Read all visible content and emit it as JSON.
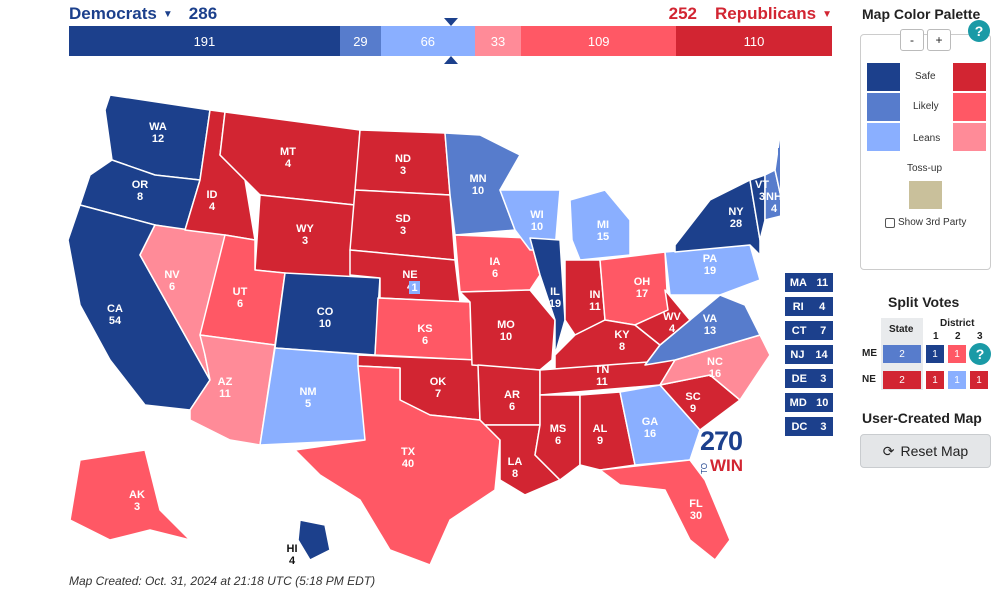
{
  "header": {
    "dem_label": "Democrats",
    "dem_total": "286",
    "rep_label": "Republicans",
    "rep_total": "252"
  },
  "bar": [
    {
      "value": "191",
      "color": "#1c408c",
      "flex": 191
    },
    {
      "value": "29",
      "color": "#577ccc",
      "flex": 29
    },
    {
      "value": "66",
      "color": "#8aafff",
      "flex": 66
    },
    {
      "value": "33",
      "color": "#ff8b98",
      "flex": 33
    },
    {
      "value": "109",
      "color": "#ff5865",
      "flex": 109
    },
    {
      "value": "110",
      "color": "#d22532",
      "flex": 110
    }
  ],
  "colors": {
    "safe_d": "#1c408c",
    "likely_d": "#577ccc",
    "lean_d": "#8aafff",
    "lean_r": "#ff8b98",
    "likely_r": "#ff5865",
    "safe_r": "#d22532",
    "tossup": "#c9c09b"
  },
  "states": {
    "WA": {
      "ev": "12",
      "rating": "safe_d"
    },
    "OR": {
      "ev": "8",
      "rating": "safe_d"
    },
    "CA": {
      "ev": "54",
      "rating": "safe_d"
    },
    "NV": {
      "ev": "6",
      "rating": "lean_r"
    },
    "ID": {
      "ev": "4",
      "rating": "safe_r"
    },
    "MT": {
      "ev": "4",
      "rating": "safe_r"
    },
    "WY": {
      "ev": "3",
      "rating": "safe_r"
    },
    "UT": {
      "ev": "6",
      "rating": "likely_r"
    },
    "AZ": {
      "ev": "11",
      "rating": "lean_r"
    },
    "CO": {
      "ev": "10",
      "rating": "safe_d"
    },
    "NM": {
      "ev": "5",
      "rating": "lean_d"
    },
    "ND": {
      "ev": "3",
      "rating": "safe_r"
    },
    "SD": {
      "ev": "3",
      "rating": "safe_r"
    },
    "NE": {
      "ev": "4",
      "rating": "safe_r"
    },
    "KS": {
      "ev": "6",
      "rating": "likely_r"
    },
    "OK": {
      "ev": "7",
      "rating": "safe_r"
    },
    "TX": {
      "ev": "40",
      "rating": "likely_r"
    },
    "MN": {
      "ev": "10",
      "rating": "likely_d"
    },
    "IA": {
      "ev": "6",
      "rating": "likely_r"
    },
    "MO": {
      "ev": "10",
      "rating": "safe_r"
    },
    "AR": {
      "ev": "6",
      "rating": "safe_r"
    },
    "LA": {
      "ev": "8",
      "rating": "safe_r"
    },
    "WI": {
      "ev": "10",
      "rating": "lean_d"
    },
    "IL": {
      "ev": "19",
      "rating": "safe_d"
    },
    "MI": {
      "ev": "15",
      "rating": "lean_d"
    },
    "IN": {
      "ev": "11",
      "rating": "safe_r"
    },
    "OH": {
      "ev": "17",
      "rating": "likely_r"
    },
    "KY": {
      "ev": "8",
      "rating": "safe_r"
    },
    "TN": {
      "ev": "11",
      "rating": "safe_r"
    },
    "MS": {
      "ev": "6",
      "rating": "safe_r"
    },
    "AL": {
      "ev": "9",
      "rating": "safe_r"
    },
    "GA": {
      "ev": "16",
      "rating": "lean_d"
    },
    "FL": {
      "ev": "30",
      "rating": "likely_r"
    },
    "SC": {
      "ev": "9",
      "rating": "safe_r"
    },
    "NC": {
      "ev": "16",
      "rating": "lean_r"
    },
    "VA": {
      "ev": "13",
      "rating": "likely_d"
    },
    "WV": {
      "ev": "4",
      "rating": "safe_r"
    },
    "PA": {
      "ev": "19",
      "rating": "lean_d"
    },
    "NY": {
      "ev": "28",
      "rating": "safe_d"
    },
    "VT": {
      "ev": "3",
      "rating": "safe_d"
    },
    "NH": {
      "ev": "4",
      "rating": "likely_d"
    },
    "ME": {
      "ev": "",
      "rating": "likely_d"
    },
    "AK": {
      "ev": "3",
      "rating": "likely_r"
    },
    "HI": {
      "ev": "4",
      "rating": "safe_d"
    }
  },
  "maine_districts": [
    "2",
    "1",
    "1"
  ],
  "nebraska_district": "1",
  "small_states": [
    {
      "abbr": "MA",
      "ev": "11"
    },
    {
      "abbr": "RI",
      "ev": "4"
    },
    {
      "abbr": "CT",
      "ev": "7"
    },
    {
      "abbr": "NJ",
      "ev": "14"
    },
    {
      "abbr": "DE",
      "ev": "3"
    },
    {
      "abbr": "MD",
      "ev": "10"
    },
    {
      "abbr": "DC",
      "ev": "3"
    }
  ],
  "logo": {
    "big": "270",
    "to": "TO",
    "win": "WIN"
  },
  "created": "Map Created: Oct. 31, 2024 at 21:18 UTC (5:18 PM EDT)",
  "palette": {
    "title": "Map Color Palette",
    "zoom_minus": "-",
    "zoom_plus": "+",
    "help": "?",
    "safe": "Safe",
    "likely": "Likely",
    "leans": "Leans",
    "tossup": "Toss-up",
    "third_party": "Show 3rd Party"
  },
  "split": {
    "title": "Split Votes",
    "state_header": "State",
    "district_header": "District",
    "district_nums": [
      "1",
      "2",
      "3"
    ],
    "rows": [
      {
        "label": "ME",
        "state": "2",
        "districts": [
          "1",
          "1"
        ]
      },
      {
        "label": "NE",
        "state": "2",
        "districts": [
          "1",
          "1",
          "1"
        ]
      }
    ]
  },
  "user_map": {
    "title": "User-Created Map",
    "reset": "Reset Map",
    "reset_icon": "refresh-icon"
  }
}
